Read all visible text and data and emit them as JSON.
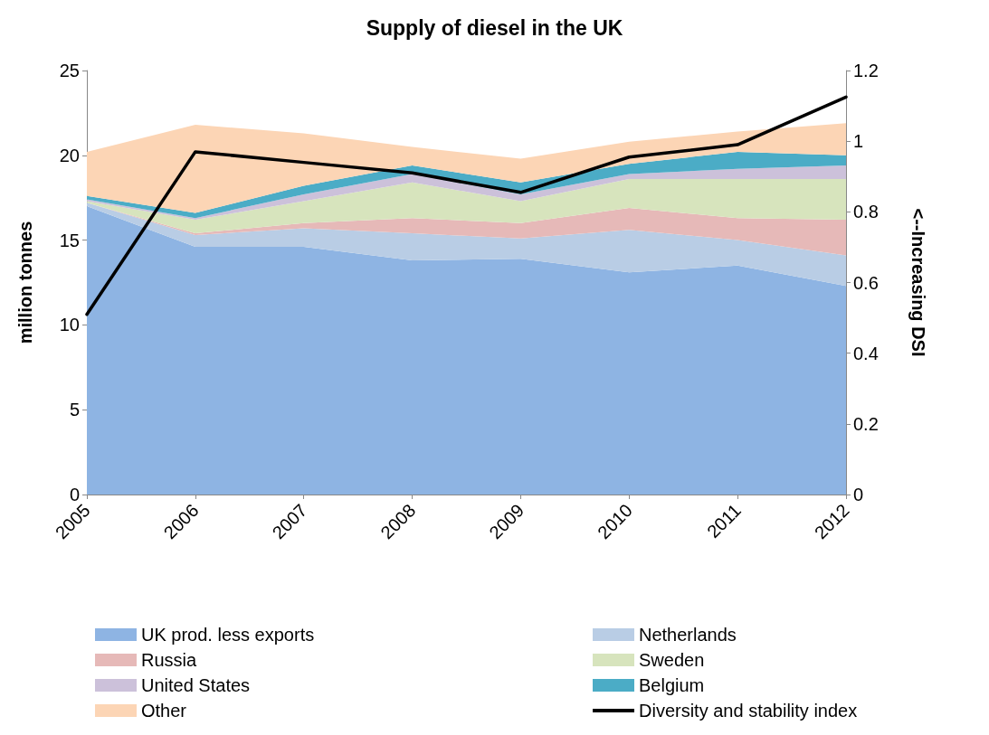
{
  "chart_data": {
    "type": "area",
    "title": "Supply of diesel in the UK",
    "ylabel": "million tonnes",
    "y2label": "<--Increasing DSI",
    "categories": [
      "2005",
      "2006",
      "2007",
      "2008",
      "2009",
      "2010",
      "2011",
      "2012"
    ],
    "stacked": true,
    "series": [
      {
        "name": "UK prod. less exports",
        "color": "#8eb4e3",
        "values": [
          17.0,
          14.6,
          14.6,
          13.8,
          13.9,
          13.1,
          13.5,
          12.3
        ]
      },
      {
        "name": "Netherlands",
        "color": "#b9cde5",
        "values": [
          0.2,
          0.7,
          1.1,
          1.6,
          1.2,
          2.5,
          1.5,
          1.8
        ]
      },
      {
        "name": "Russia",
        "color": "#e6b9b8",
        "values": [
          0,
          0.1,
          0.3,
          0.9,
          0.9,
          1.3,
          1.3,
          2.1
        ]
      },
      {
        "name": "Sweden",
        "color": "#d7e4bd",
        "values": [
          0.1,
          0.8,
          1.3,
          2.1,
          1.3,
          1.7,
          2.3,
          2.4
        ]
      },
      {
        "name": "United States",
        "color": "#ccc1da",
        "values": [
          0.1,
          0.1,
          0.4,
          0.5,
          0.4,
          0.3,
          0.6,
          0.8
        ]
      },
      {
        "name": "Belgium",
        "color": "#4bacc6",
        "values": [
          0.2,
          0.3,
          0.5,
          0.5,
          0.7,
          0.6,
          1.0,
          0.6
        ]
      },
      {
        "name": "Other",
        "color": "#fcd5b5",
        "values": [
          2.6,
          5.2,
          3.1,
          1.1,
          1.4,
          1.3,
          1.2,
          1.9
        ]
      },
      {
        "name": "Diversity and stability index",
        "type": "line",
        "axis": "y2",
        "color": "#000000",
        "values": [
          0.51,
          0.97,
          0.94,
          0.91,
          0.855,
          0.955,
          0.99,
          1.125
        ]
      }
    ],
    "ylim": [
      0,
      25
    ],
    "yticks": [
      0,
      5,
      10,
      15,
      20,
      25
    ],
    "y2lim": [
      0,
      1.2
    ],
    "y2ticks": [
      0,
      0.2,
      0.4,
      0.6,
      0.8,
      1,
      1.2
    ],
    "grid": false,
    "legend": "bottom",
    "marker": "none",
    "line_style": "solid"
  }
}
